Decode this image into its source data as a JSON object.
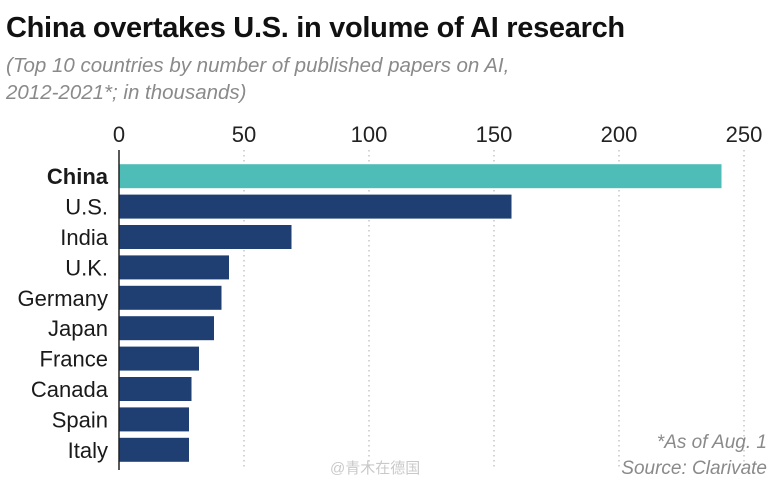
{
  "header": {
    "title": "China overtakes U.S. in volume of AI research",
    "subtitle_line1": "(Top 10 countries by number of published papers on AI,",
    "subtitle_line2": "2012-2021*; in thousands)"
  },
  "footer": {
    "footnote": "*As of Aug. 1",
    "source": "Source: Clarivate",
    "watermark": "@青木在德国"
  },
  "colors": {
    "highlight": "#4fbdb7",
    "bar": "#1f3f73",
    "axis": "#222222",
    "grid": "#b8b8b8"
  },
  "chart_data": {
    "type": "bar",
    "orientation": "horizontal",
    "title": "China overtakes U.S. in volume of AI research",
    "subtitle": "(Top 10 countries by number of published papers on AI, 2012-2021*; in thousands)",
    "categories": [
      "China",
      "U.S.",
      "India",
      "U.K.",
      "Germany",
      "Japan",
      "France",
      "Canada",
      "Spain",
      "Italy"
    ],
    "values": [
      241,
      157,
      69,
      44,
      41,
      38,
      32,
      29,
      28,
      28
    ],
    "highlight": "China",
    "xlabel": "",
    "ylabel": "",
    "xlim": [
      0,
      250
    ],
    "xticks": [
      0,
      50,
      100,
      150,
      200,
      250
    ],
    "grid": "vertical dotted",
    "axis_position": "top"
  }
}
